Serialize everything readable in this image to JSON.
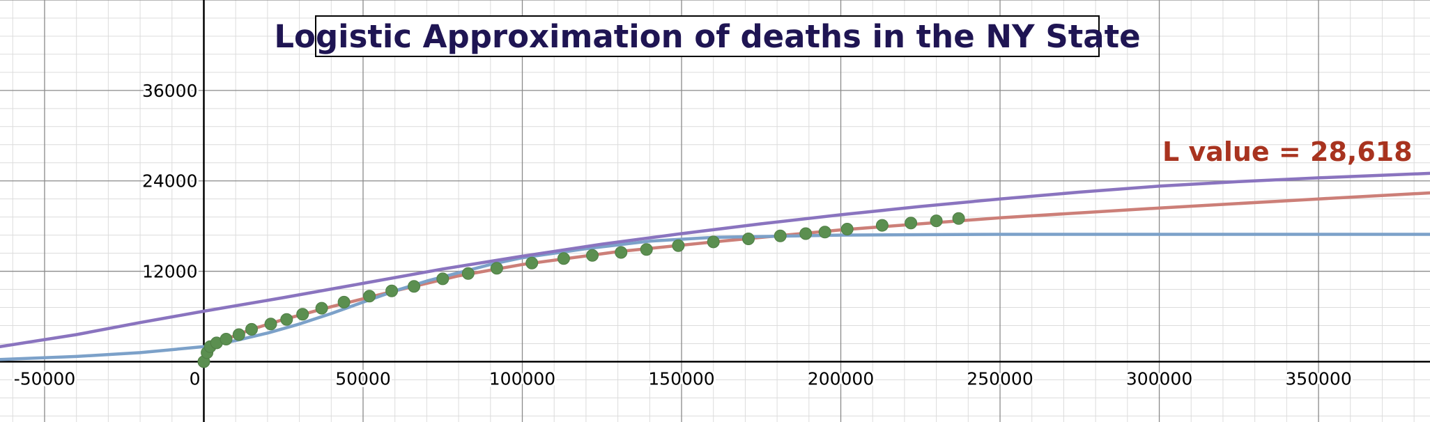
{
  "chart_data": {
    "type": "scatter",
    "title": "Logistic Approximation of deaths in the NY State",
    "annotation": {
      "text": "L value = 28,618",
      "color": "#a8331f"
    },
    "xlim": [
      -64000,
      385000
    ],
    "ylim": [
      -8000,
      48000
    ],
    "x_ticks": [
      -50000,
      0,
      50000,
      100000,
      150000,
      200000,
      250000,
      300000,
      350000
    ],
    "x_tick_labels": [
      "-50000",
      "0",
      "50000",
      "100000",
      "150000",
      "200000",
      "250000",
      "300000",
      "350000"
    ],
    "y_ticks": [
      12000,
      24000,
      36000
    ],
    "y_tick_labels": [
      "12000",
      "24000",
      "36000"
    ],
    "grid": true,
    "colors": {
      "points": "#5b8f50",
      "red_curve": "#cc7f78",
      "blue_curve": "#7ca1c9",
      "purple_curve": "#8a74bf",
      "title": "#1f1553"
    },
    "series": [
      {
        "kind": "points",
        "x": [
          0,
          1000,
          2000,
          4000,
          7000,
          11000,
          15000,
          21000,
          26000,
          31000,
          37000,
          44000,
          52000,
          59000,
          66000,
          75000,
          83000,
          92000,
          103000,
          113000,
          122000,
          131000,
          139000,
          149000,
          160000,
          171000,
          181000,
          189000,
          195000,
          202000,
          213000,
          222000,
          230000,
          237000
        ],
        "y": [
          0,
          1200,
          2000,
          2500,
          3000,
          3600,
          4300,
          5000,
          5600,
          6300,
          7100,
          7900,
          8700,
          9400,
          10000,
          11000,
          11700,
          12400,
          13100,
          13700,
          14100,
          14500,
          14900,
          15400,
          15900,
          16300,
          16700,
          17000,
          17200,
          17600,
          18100,
          18400,
          18700,
          19000
        ]
      },
      {
        "kind": "curve",
        "x": [
          0,
          1000,
          3000,
          6000,
          10000,
          15000,
          25000,
          40000,
          60000,
          80000,
          100000,
          130000,
          160000,
          200000,
          250000,
          300000,
          350000,
          385000
        ],
        "y": [
          0,
          1300,
          2100,
          2800,
          3500,
          4300,
          5600,
          7300,
          9400,
          11400,
          12900,
          14600,
          15900,
          17500,
          19100,
          20400,
          21600,
          22400
        ]
      },
      {
        "kind": "curve",
        "x": [
          -64000,
          -40000,
          -20000,
          0,
          10000,
          20000,
          30000,
          40000,
          50000,
          60000,
          70000,
          80000,
          90000,
          100000,
          120000,
          140000,
          160000,
          200000,
          250000,
          300000,
          385000
        ],
        "y": [
          300,
          700,
          1200,
          2000,
          2800,
          3800,
          5000,
          6400,
          7900,
          9400,
          10700,
          11800,
          12900,
          13800,
          15000,
          16000,
          16500,
          16800,
          16900,
          16900,
          16900
        ]
      },
      {
        "kind": "curve",
        "x": [
          -64000,
          -40000,
          -20000,
          0,
          25000,
          50000,
          75000,
          100000,
          125000,
          150000,
          175000,
          200000,
          225000,
          250000,
          275000,
          300000,
          325000,
          350000,
          385000
        ],
        "y": [
          2000,
          3600,
          5200,
          6700,
          8500,
          10400,
          12300,
          14000,
          15600,
          17000,
          18300,
          19500,
          20600,
          21600,
          22500,
          23300,
          23900,
          24400,
          25000
        ]
      }
    ]
  }
}
